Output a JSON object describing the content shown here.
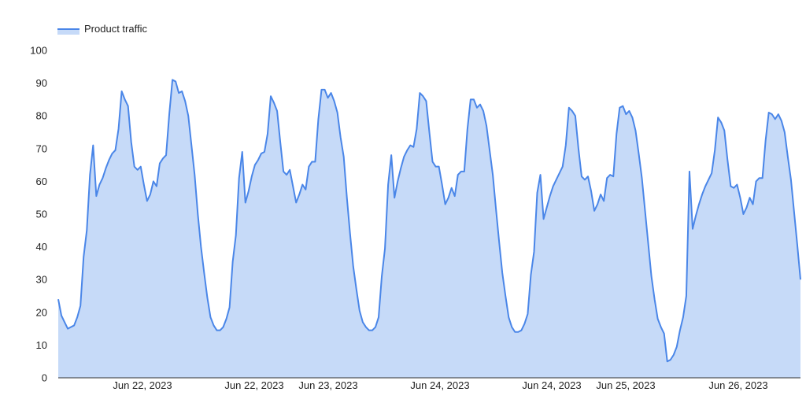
{
  "chart_data": {
    "type": "area",
    "title": "",
    "xlabel": "",
    "ylabel": "",
    "ylim": [
      0,
      100
    ],
    "yticks": [
      0,
      10,
      20,
      30,
      40,
      50,
      60,
      70,
      80,
      90,
      100
    ],
    "xtick_labels": [
      "Jun 22, 2023",
      "Jun 22, 2023",
      "Jun 23, 2023",
      "Jun 24, 2023",
      "Jun 24, 2023",
      "Jun 25, 2023",
      "Jun 26, 2023"
    ],
    "legend": {
      "position": "top-left"
    },
    "grid": false,
    "colors": {
      "line": "#4a86e8",
      "fill": "#c6daf8"
    },
    "series": [
      {
        "name": "Product traffic",
        "values": [
          24,
          19,
          17,
          15,
          15.5,
          16,
          18.5,
          22,
          37,
          45,
          62,
          71,
          55.5,
          59,
          61,
          64,
          66.5,
          68.5,
          69.5,
          76,
          87.5,
          85,
          83,
          72,
          64.5,
          63.5,
          64.5,
          59,
          54,
          56,
          60,
          58.5,
          65.5,
          67,
          68,
          80.5,
          91,
          90.5,
          87,
          87.5,
          84.5,
          80,
          71,
          62,
          50,
          40,
          32,
          24.5,
          18.5,
          16,
          14.5,
          14.5,
          15.5,
          18,
          21.5,
          35.5,
          43.5,
          61,
          69,
          53.5,
          57,
          61.5,
          65,
          66.5,
          68.5,
          69,
          74.5,
          86,
          84,
          81.5,
          72,
          63,
          62,
          63.5,
          58.5,
          53.5,
          56,
          59,
          57.5,
          64.5,
          66,
          66,
          79,
          88,
          88,
          85.5,
          87,
          84.5,
          81,
          73.5,
          67.5,
          55,
          44,
          34,
          27,
          20.5,
          17,
          15.5,
          14.5,
          14.5,
          15.5,
          18.5,
          31,
          39.5,
          59,
          68,
          55,
          60,
          64,
          67.5,
          69.5,
          71,
          70.5,
          76,
          87,
          86,
          84.5,
          75,
          66,
          64.5,
          64.5,
          59,
          53,
          55,
          58,
          55.5,
          62,
          63,
          63,
          76,
          85,
          85,
          82.5,
          83.5,
          81.5,
          77,
          69.5,
          62,
          51.5,
          41.5,
          32,
          25,
          18.5,
          15.5,
          14,
          14,
          14.5,
          16.5,
          19.5,
          31.5,
          38.5,
          56.5,
          62,
          48.5,
          52,
          55.5,
          58.5,
          60.5,
          62.5,
          64.5,
          71,
          82.5,
          81.5,
          80,
          70,
          61.5,
          60.5,
          61.5,
          57,
          51,
          53,
          56,
          54,
          61,
          62,
          61.5,
          74.5,
          82.5,
          83,
          80.5,
          81.5,
          79.5,
          75.5,
          68.5,
          61,
          51,
          41,
          31,
          24,
          18,
          15.5,
          13.5,
          5,
          5.5,
          7,
          9.5,
          14.5,
          18.5,
          25,
          63,
          45.5,
          49.5,
          53,
          56,
          58.5,
          60.5,
          62.5,
          69.5,
          79.5,
          78,
          75.5,
          66.5,
          58.5,
          58,
          59,
          55,
          50,
          52,
          55,
          53,
          60,
          61,
          61,
          72.5,
          81,
          80.5,
          79,
          80.5,
          78.5,
          75,
          67.5,
          60.5,
          50.5,
          40.5,
          30
        ]
      }
    ]
  }
}
